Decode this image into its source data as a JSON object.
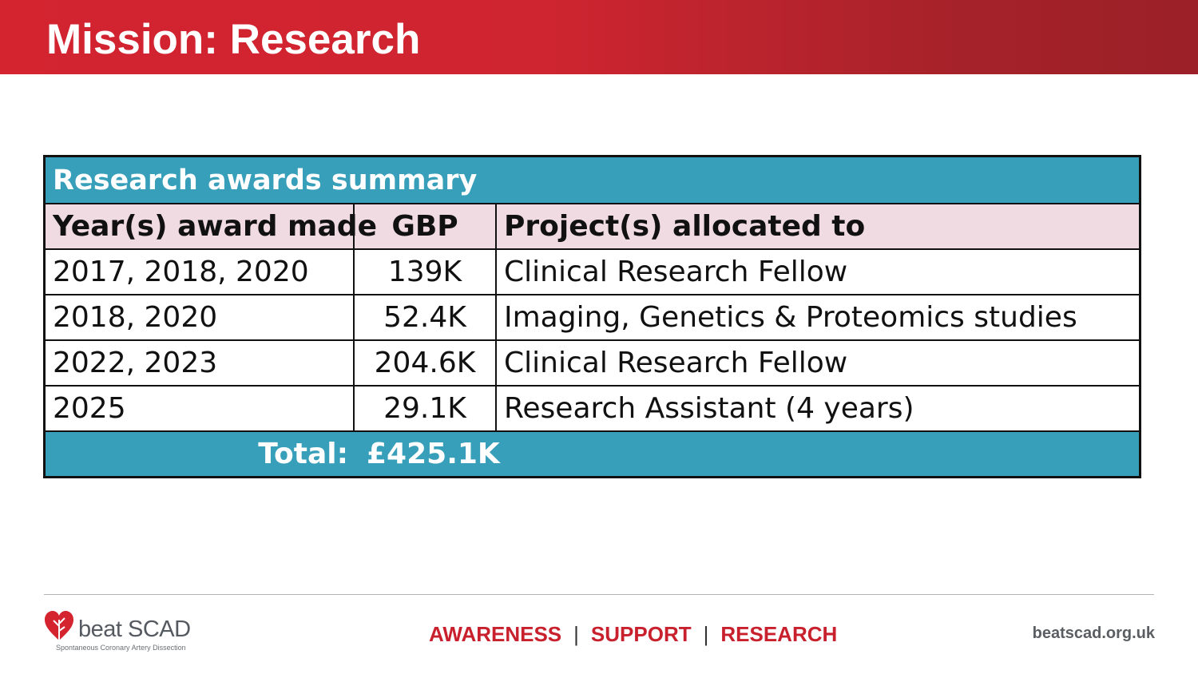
{
  "slide": {
    "title": "Mission: Research"
  },
  "table": {
    "title": "Research awards summary",
    "headers": [
      "Year(s) award made",
      "GBP",
      "Project(s) allocated to"
    ],
    "rows": [
      [
        "2017, 2018, 2020",
        "139K",
        "Clinical Research Fellow"
      ],
      [
        "2018, 2020",
        "52.4K",
        "Imaging, Genetics & Proteomics studies"
      ],
      [
        "2022, 2023",
        "204.6K",
        "Clinical Research Fellow"
      ],
      [
        "2025",
        "29.1K",
        "Research Assistant (4 years)"
      ]
    ],
    "total_label": "Total:",
    "total_value": "£425.1K"
  },
  "footer": {
    "logo_text": "beat SCAD",
    "logo_tagline": "Spontaneous Coronary Artery Dissection",
    "tagline": [
      "AWARENESS",
      "SUPPORT",
      "RESEARCH"
    ],
    "separator": "|",
    "website": "beatscad.org.uk"
  },
  "colors": {
    "header_red": "#d32430",
    "table_teal": "#379fb9",
    "header_pink": "#f1dbe2",
    "tagline_red": "#c8202d"
  }
}
